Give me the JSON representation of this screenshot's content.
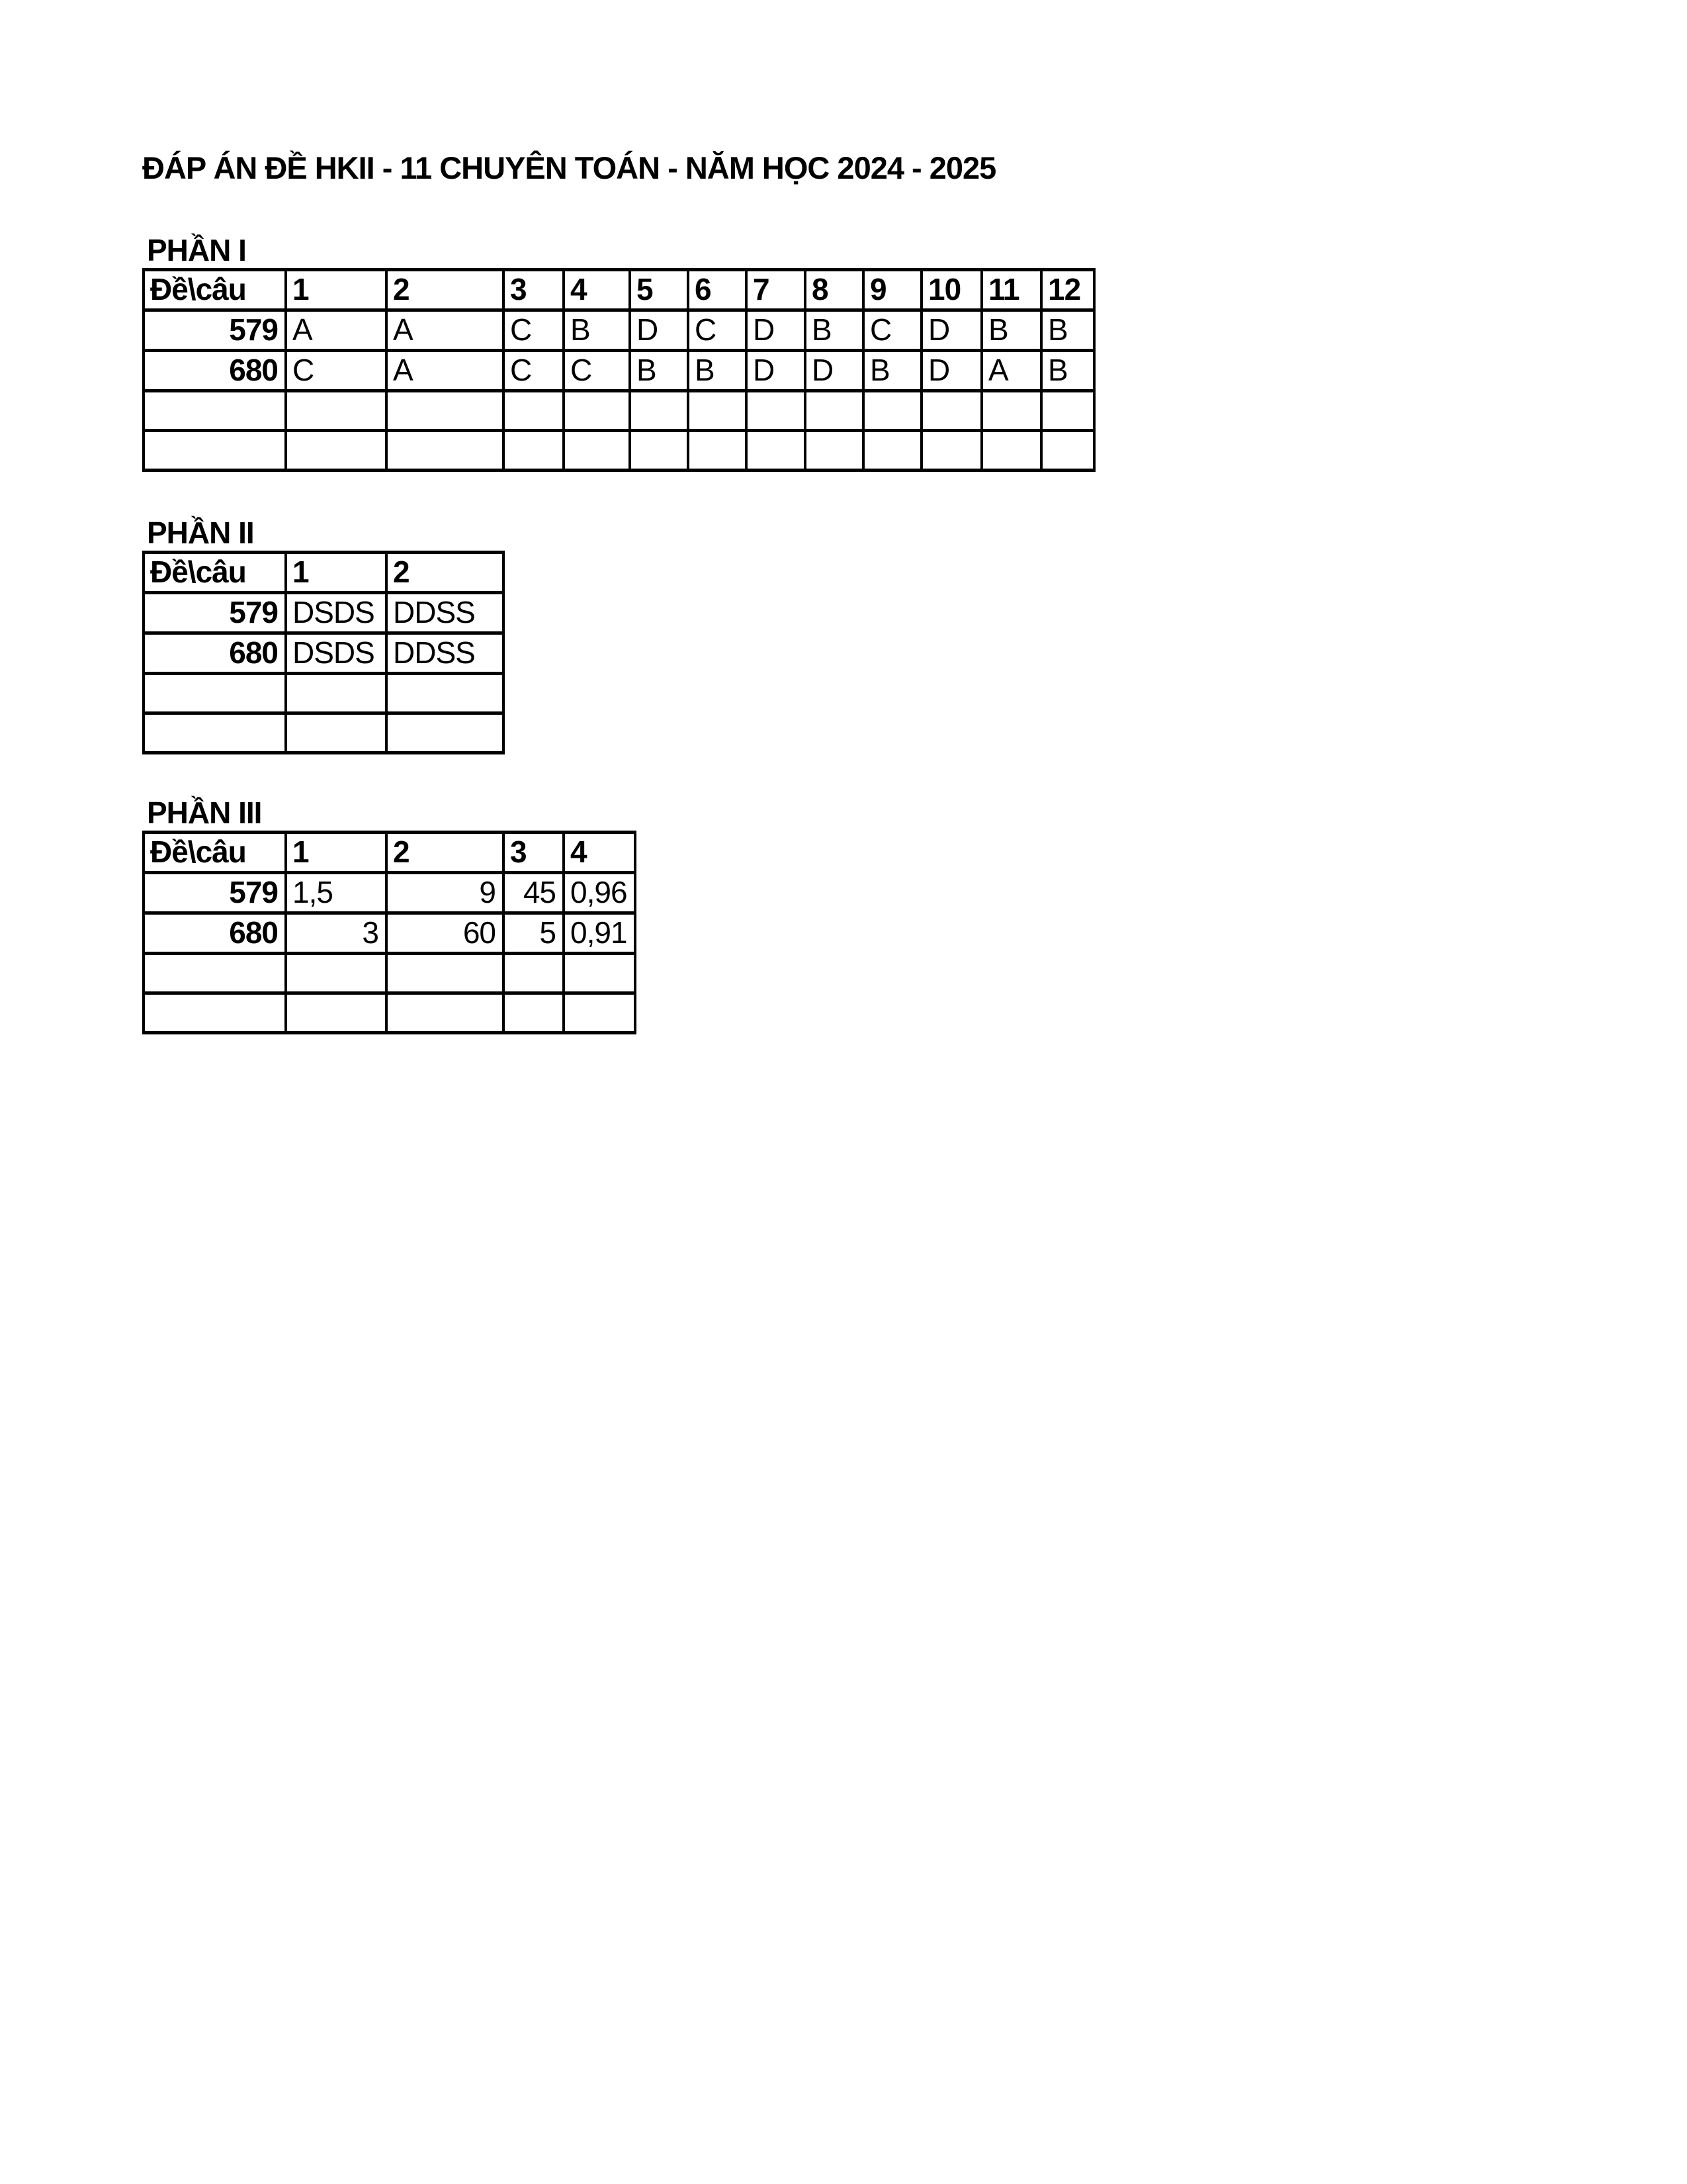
{
  "title": "ĐÁP ÁN ĐỀ HKII - 11 CHUYÊN TOÁN - NĂM HỌC 2024 - 2025",
  "sections": [
    {
      "label": "PHẦN I",
      "corner": "Đề\\câu",
      "columns": [
        "1",
        "2",
        "3",
        "4",
        "5",
        "6",
        "7",
        "8",
        "9",
        "10",
        "11",
        "12"
      ],
      "rows": [
        {
          "exam_code": "579",
          "cells": [
            "A",
            "A",
            "C",
            "B",
            "D",
            "C",
            "D",
            "B",
            "C",
            "D",
            "B",
            "B"
          ],
          "aligns": [
            "left",
            "left",
            "left",
            "left",
            "left",
            "left",
            "left",
            "left",
            "left",
            "left",
            "left",
            "left"
          ]
        },
        {
          "exam_code": "680",
          "cells": [
            "C",
            "A",
            "C",
            "C",
            "B",
            "B",
            "D",
            "D",
            "B",
            "D",
            "A",
            "B"
          ],
          "aligns": [
            "left",
            "left",
            "left",
            "left",
            "left",
            "left",
            "left",
            "left",
            "left",
            "left",
            "left",
            "left"
          ]
        },
        {
          "exam_code": "",
          "cells": [
            "",
            "",
            "",
            "",
            "",
            "",
            "",
            "",
            "",
            "",
            "",
            ""
          ],
          "aligns": [
            "left",
            "left",
            "left",
            "left",
            "left",
            "left",
            "left",
            "left",
            "left",
            "left",
            "left",
            "left"
          ]
        },
        {
          "exam_code": "",
          "cells": [
            "",
            "",
            "",
            "",
            "",
            "",
            "",
            "",
            "",
            "",
            "",
            ""
          ],
          "aligns": [
            "left",
            "left",
            "left",
            "left",
            "left",
            "left",
            "left",
            "left",
            "left",
            "left",
            "left",
            "left"
          ]
        }
      ]
    },
    {
      "label": "PHẦN II",
      "corner": "Đề\\câu",
      "columns": [
        "1",
        "2"
      ],
      "rows": [
        {
          "exam_code": "579",
          "cells": [
            "DSDS",
            "DDSS"
          ],
          "aligns": [
            "left",
            "left"
          ]
        },
        {
          "exam_code": "680",
          "cells": [
            "DSDS",
            "DDSS"
          ],
          "aligns": [
            "left",
            "left"
          ]
        },
        {
          "exam_code": "",
          "cells": [
            "",
            ""
          ],
          "aligns": [
            "left",
            "left"
          ]
        },
        {
          "exam_code": "",
          "cells": [
            "",
            ""
          ],
          "aligns": [
            "left",
            "left"
          ]
        }
      ]
    },
    {
      "label": "PHẦN III",
      "corner": "Đề\\câu",
      "columns": [
        "1",
        "2",
        "3",
        "4"
      ],
      "rows": [
        {
          "exam_code": "579",
          "cells": [
            "1,5",
            "9",
            "45",
            "0,96"
          ],
          "aligns": [
            "left",
            "right",
            "right",
            "left"
          ]
        },
        {
          "exam_code": "680",
          "cells": [
            "3",
            "60",
            "5",
            "0,91"
          ],
          "aligns": [
            "right",
            "right",
            "right",
            "left"
          ]
        },
        {
          "exam_code": "",
          "cells": [
            "",
            "",
            "",
            ""
          ],
          "aligns": [
            "left",
            "left",
            "left",
            "left"
          ]
        },
        {
          "exam_code": "",
          "cells": [
            "",
            "",
            "",
            ""
          ],
          "aligns": [
            "left",
            "left",
            "left",
            "left"
          ]
        }
      ]
    }
  ]
}
